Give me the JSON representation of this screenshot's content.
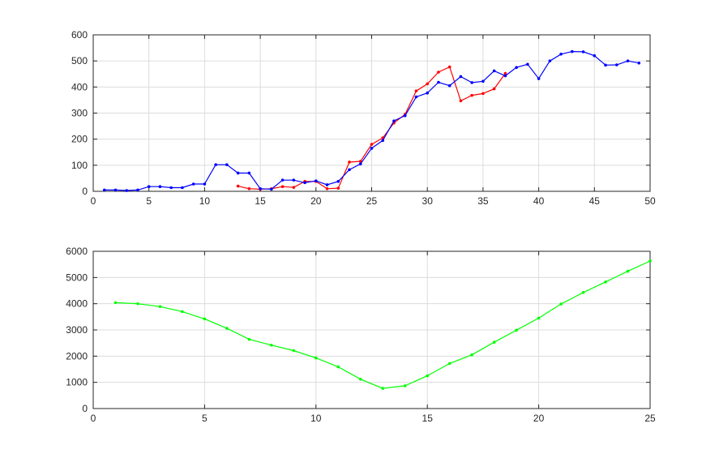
{
  "chart_data": [
    {
      "type": "line",
      "xlim": [
        0,
        50
      ],
      "ylim": [
        0,
        600
      ],
      "x_ticks": [
        0,
        5,
        10,
        15,
        20,
        25,
        30,
        35,
        40,
        45,
        50
      ],
      "y_ticks": [
        0,
        100,
        200,
        300,
        400,
        500,
        600
      ],
      "grid": true,
      "series": [
        {
          "color": "#ff0000",
          "marker": "dot",
          "x": [
            13,
            14,
            15,
            16,
            17,
            18,
            19,
            20,
            21,
            22,
            23,
            24,
            25,
            26,
            27,
            28,
            29,
            30,
            31,
            32,
            33,
            34,
            35,
            36,
            37
          ],
          "values": [
            20,
            10,
            8,
            10,
            18,
            15,
            38,
            38,
            10,
            12,
            112,
            115,
            180,
            205,
            262,
            295,
            385,
            412,
            457,
            477,
            347,
            368,
            375,
            393,
            452
          ]
        },
        {
          "color": "#0000ff",
          "marker": "dot",
          "x": [
            1,
            2,
            3,
            4,
            5,
            6,
            7,
            8,
            9,
            10,
            11,
            12,
            13,
            14,
            15,
            16,
            17,
            18,
            19,
            20,
            21,
            22,
            23,
            24,
            25,
            26,
            27,
            28,
            29,
            30,
            31,
            32,
            33,
            34,
            35,
            36,
            37,
            38,
            39,
            40,
            41,
            42,
            43,
            44,
            45,
            46,
            47,
            48,
            49
          ],
          "values": [
            5,
            5,
            3,
            5,
            18,
            18,
            14,
            14,
            28,
            28,
            102,
            102,
            70,
            70,
            10,
            8,
            43,
            43,
            33,
            40,
            25,
            38,
            83,
            105,
            165,
            195,
            270,
            290,
            362,
            377,
            418,
            405,
            440,
            417,
            422,
            462,
            443,
            475,
            487,
            432,
            500,
            526,
            536,
            535,
            520,
            484,
            485,
            500,
            492
          ]
        }
      ]
    },
    {
      "type": "line",
      "xlim": [
        0,
        25
      ],
      "ylim": [
        0,
        6000
      ],
      "x_ticks": [
        0,
        5,
        10,
        15,
        20,
        25
      ],
      "y_ticks": [
        0,
        1000,
        2000,
        3000,
        4000,
        5000,
        6000
      ],
      "grid": true,
      "series": [
        {
          "color": "#00ff00",
          "marker": "dot",
          "x": [
            1,
            2,
            3,
            4,
            5,
            6,
            7,
            8,
            9,
            10,
            11,
            12,
            13,
            14,
            15,
            16,
            17,
            18,
            19,
            20,
            21,
            22,
            23,
            24,
            25
          ],
          "values": [
            4040,
            4000,
            3890,
            3700,
            3420,
            3060,
            2640,
            2420,
            2210,
            1930,
            1590,
            1120,
            770,
            870,
            1250,
            1720,
            2050,
            2530,
            2990,
            3450,
            3990,
            4430,
            4830,
            5240,
            5630
          ]
        }
      ]
    }
  ]
}
